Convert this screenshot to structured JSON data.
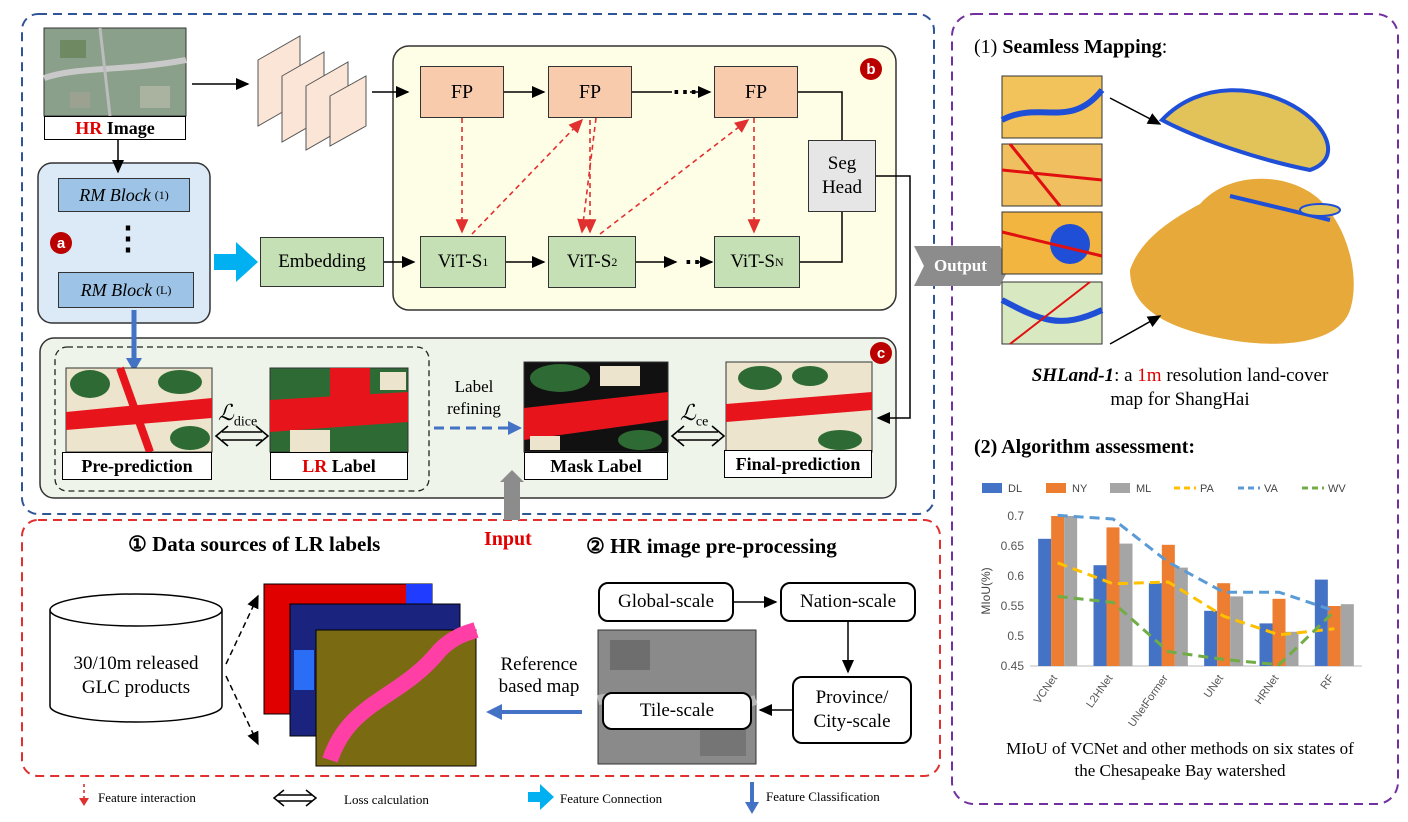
{
  "hr_image": {
    "hr": "HR",
    "rest": " Image"
  },
  "rm_block_1": "RM Block",
  "rm_block_1_sup": "(1)",
  "rm_block_dots": "⋮",
  "rm_block_l": "RM Block",
  "rm_block_l_sup": "(L)",
  "embedding": "Embedding",
  "fp": "FP",
  "ellipsis": "⋯",
  "vit_1": {
    "base": "ViT-S",
    "sub": "1"
  },
  "vit_2": {
    "base": "ViT-S",
    "sub": "2"
  },
  "vit_n": {
    "base": "ViT-S",
    "sub": "N"
  },
  "seg_head": {
    "line1": "Seg",
    "line2": "Head"
  },
  "badges": {
    "a": "a",
    "b": "b",
    "c": "c"
  },
  "loss_dice": {
    "base": "ℒ",
    "sub": "dice"
  },
  "loss_ce": {
    "base": "ℒ",
    "sub": "ce"
  },
  "label_refining": {
    "line1": "Label",
    "line2": "refining"
  },
  "captions": {
    "pre_prediction": "Pre-prediction",
    "lr_label_lr": "LR",
    "lr_label_rest": " Label",
    "mask_label": "Mask Label",
    "final_prediction": "Final-prediction"
  },
  "input_label": "Input",
  "output_label": "Output",
  "sections": {
    "data_sources": "① Data sources of LR labels",
    "hr_preprocess": "② HR image pre-processing"
  },
  "glc": {
    "line1": "30/10m released",
    "line2": "GLC products"
  },
  "reference_map": {
    "line1": "Reference",
    "line2": "based map"
  },
  "scales": {
    "global": "Global-scale",
    "nation": "Nation-scale",
    "province_1": "Province/",
    "province_2": "City-scale",
    "tile": "Tile-scale"
  },
  "right_panel": {
    "seamless_num": "(1) ",
    "seamless_title": "Seamless Mapping",
    "seamless_colon": ":",
    "shland_name": "SHLand-1",
    "shland_a": ": a ",
    "shland_1m": "1m",
    "shland_b": " resolution land-cover",
    "shland_line2": "map for ShangHai",
    "assessment_title": "(2) Algorithm assessment:",
    "chart_caption_1": "MIoU of VCNet and other methods on six states of",
    "chart_caption_2": "the Chesapeake Bay watershed"
  },
  "legend_bottom": {
    "feature_interaction": "Feature interaction",
    "loss_calculation": "Loss calculation",
    "feature_connection": "Feature Connection",
    "feature_classification": "Feature Classification"
  },
  "colors": {
    "fp": "#f8cbad",
    "vit": "#c5e0b4",
    "rm": "#9dc3e6",
    "panel_b": "#fefde6",
    "panel_a": "#dce9f7",
    "panel_c": "#eef4ea",
    "blue_dash": "#2f5597",
    "red_dash": "#e03030",
    "purple_dash": "#7030a0"
  },
  "chart_data": {
    "type": "bar",
    "categories": [
      "VCNet",
      "L2HNet",
      "UNetFormer",
      "UNet",
      "HRNet",
      "RF"
    ],
    "ylabel": "MIoU(%)",
    "ylim": [
      0.45,
      0.7
    ],
    "yticks": [
      "0.45",
      "0.5",
      "0.55",
      "0.6",
      "0.65",
      "0.7"
    ],
    "series": [
      {
        "name": "DL",
        "kind": "bar",
        "color": "#4472c4",
        "values": [
          0.662,
          0.618,
          0.588,
          0.542,
          0.521,
          0.594
        ]
      },
      {
        "name": "NY",
        "kind": "bar",
        "color": "#ed7d31",
        "values": [
          0.7,
          0.681,
          0.652,
          0.588,
          0.562,
          0.55
        ]
      },
      {
        "name": "ML",
        "kind": "bar",
        "color": "#a5a5a5",
        "values": [
          0.7,
          0.654,
          0.614,
          0.566,
          0.507,
          0.553
        ]
      },
      {
        "name": "PA",
        "kind": "line",
        "color": "#ffc000",
        "values": [
          0.622,
          0.587,
          0.59,
          0.533,
          0.502,
          0.512
        ]
      },
      {
        "name": "VA",
        "kind": "line",
        "color": "#5b9bd5",
        "values": [
          0.701,
          0.695,
          0.623,
          0.573,
          0.573,
          0.542
        ]
      },
      {
        "name": "WV",
        "kind": "line",
        "color": "#70ad47",
        "values": [
          0.566,
          0.556,
          0.474,
          0.461,
          0.452,
          0.541
        ]
      }
    ]
  }
}
